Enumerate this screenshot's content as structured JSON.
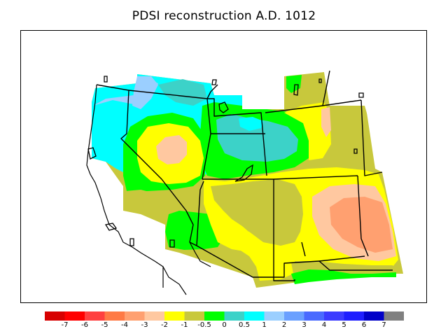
{
  "title": "PDSI reconstruction A.D. 1012",
  "legend": {
    "colors": [
      "#d70000",
      "#ff0000",
      "#ff4040",
      "#ff7a45",
      "#ffa070",
      "#ffc8a0",
      "#ffff00",
      "#c8c83c",
      "#00ff00",
      "#3cd2c8",
      "#00ffff",
      "#9bcfff",
      "#6aa0ff",
      "#4a6aff",
      "#3c3cff",
      "#1e1eff",
      "#0000c8",
      "#808080"
    ],
    "tick_labels": [
      "-7",
      "-6",
      "-5",
      "-4",
      "-3",
      "-2",
      "-1",
      "-0.5",
      "0",
      "0.5",
      "1",
      "2",
      "3",
      "4",
      "5",
      "6",
      "7"
    ]
  },
  "map_colors": {
    "neutral": "#c8c83c",
    "slight_wet": "#00ff00",
    "wet": "#3cd2c8",
    "very_wet": "#00ffff",
    "extra_wet": "#9bcfff",
    "slight_dry": "#ffff00",
    "dry": "#ffc8a0",
    "very_dry": "#ffa070",
    "boundary": "#000000"
  }
}
